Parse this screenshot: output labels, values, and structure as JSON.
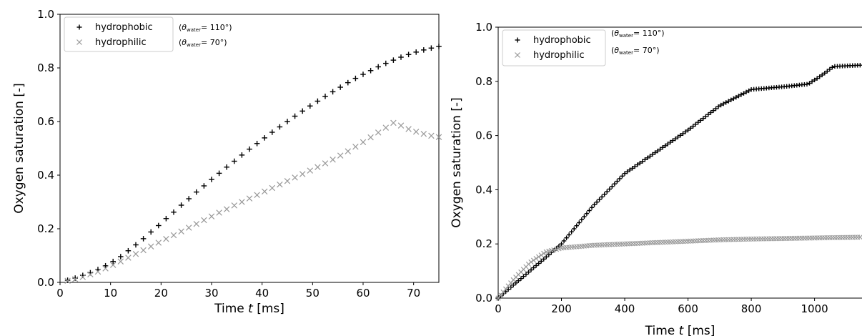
{
  "chart_data": [
    {
      "type": "scatter",
      "xlabel_prefix": "Time ",
      "xlabel_var": "t",
      "xlabel_suffix": " [ms]",
      "ylabel": "Oxygen saturation [-]",
      "xlim": [
        0,
        75
      ],
      "ylim": [
        0,
        1.0
      ],
      "xticks": [
        0,
        10,
        20,
        30,
        40,
        50,
        60,
        70
      ],
      "yticks": [
        0.0,
        0.2,
        0.4,
        0.6,
        0.8,
        1.0
      ],
      "ytick_labels": [
        "0.0",
        "0.2",
        "0.4",
        "0.6",
        "0.8",
        "1.0"
      ],
      "legend_position": "top-left",
      "series": [
        {
          "name": "hydrophobic",
          "marker": "plus",
          "color": "#000000",
          "angle_label": "(θwater= 110°)",
          "angle_symbol": "θ",
          "angle_sub": "water",
          "angle_value": "= 110°)",
          "x": [
            1.5,
            3,
            4.5,
            6,
            7.5,
            9,
            10.5,
            12,
            13.5,
            15,
            16.5,
            18,
            19.5,
            21,
            22.5,
            24,
            25.5,
            27,
            28.5,
            30,
            31.5,
            33,
            34.5,
            36,
            37.5,
            39,
            40.5,
            42,
            43.5,
            45,
            46.5,
            48,
            49.5,
            51,
            52.5,
            54,
            55.5,
            57,
            58.5,
            60,
            61.5,
            63,
            64.5,
            66,
            67.5,
            69,
            70.5,
            72,
            73.5,
            75
          ],
          "y": [
            0.008,
            0.016,
            0.026,
            0.036,
            0.048,
            0.062,
            0.078,
            0.096,
            0.118,
            0.14,
            0.163,
            0.188,
            0.212,
            0.238,
            0.262,
            0.288,
            0.312,
            0.337,
            0.36,
            0.384,
            0.407,
            0.43,
            0.452,
            0.475,
            0.497,
            0.518,
            0.539,
            0.56,
            0.58,
            0.6,
            0.62,
            0.639,
            0.658,
            0.676,
            0.694,
            0.711,
            0.728,
            0.745,
            0.761,
            0.776,
            0.79,
            0.804,
            0.817,
            0.829,
            0.84,
            0.85,
            0.859,
            0.867,
            0.874,
            0.88
          ]
        },
        {
          "name": "hydrophilic",
          "marker": "x",
          "color": "#999999",
          "angle_label": "(θwater= 70°)",
          "angle_symbol": "θ",
          "angle_sub": "water",
          "angle_value": "= 70°)",
          "x": [
            1.5,
            3,
            4.5,
            6,
            7.5,
            9,
            10.5,
            12,
            13.5,
            15,
            16.5,
            18,
            19.5,
            21,
            22.5,
            24,
            25.5,
            27,
            28.5,
            30,
            31.5,
            33,
            34.5,
            36,
            37.5,
            39,
            40.5,
            42,
            43.5,
            45,
            46.5,
            48,
            49.5,
            51,
            52.5,
            54,
            55.5,
            57,
            58.5,
            60,
            61.5,
            63,
            64.5,
            66,
            67.5,
            69,
            70.5,
            72,
            73.5,
            75
          ],
          "y": [
            0.006,
            0.012,
            0.02,
            0.03,
            0.04,
            0.052,
            0.065,
            0.078,
            0.092,
            0.106,
            0.12,
            0.134,
            0.148,
            0.162,
            0.176,
            0.19,
            0.204,
            0.218,
            0.232,
            0.246,
            0.26,
            0.273,
            0.287,
            0.3,
            0.313,
            0.326,
            0.339,
            0.352,
            0.365,
            0.378,
            0.391,
            0.404,
            0.417,
            0.43,
            0.444,
            0.458,
            0.473,
            0.489,
            0.506,
            0.523,
            0.541,
            0.559,
            0.577,
            0.595,
            0.585,
            0.572,
            0.562,
            0.554,
            0.547,
            0.542
          ]
        }
      ]
    },
    {
      "type": "scatter",
      "xlabel_prefix": "Time ",
      "xlabel_var": "t",
      "xlabel_suffix": " [ms]",
      "ylabel": "Oxygen saturation [-]",
      "xlim": [
        0,
        1150
      ],
      "ylim": [
        0,
        1.0
      ],
      "xticks": [
        0,
        200,
        400,
        600,
        800,
        1000
      ],
      "yticks": [
        0.0,
        0.2,
        0.4,
        0.6,
        0.8,
        1.0
      ],
      "ytick_labels": [
        "0.0",
        "0.2",
        "0.4",
        "0.6",
        "0.8",
        "1.0"
      ],
      "legend_position": "top-left",
      "series": [
        {
          "name": "hydrophobic",
          "marker": "plus",
          "color": "#000000",
          "angle_label": "(θwater= 110°)",
          "angle_symbol": "θ",
          "angle_sub": "water",
          "angle_value": "= 110°)",
          "x": [
            0,
            100,
            200,
            300,
            400,
            500,
            600,
            700,
            800,
            900,
            980,
            1020,
            1060,
            1150
          ],
          "y": [
            0,
            0.1,
            0.2,
            0.34,
            0.46,
            0.54,
            0.62,
            0.71,
            0.77,
            0.78,
            0.79,
            0.82,
            0.855,
            0.86
          ]
        },
        {
          "name": "hydrophilic",
          "marker": "x",
          "color": "#999999",
          "angle_label": "(θwater= 70°)",
          "angle_symbol": "θ",
          "angle_sub": "water",
          "angle_value": "= 70°)",
          "x": [
            0,
            50,
            100,
            150,
            200,
            250,
            300,
            400,
            500,
            600,
            700,
            800,
            900,
            1000,
            1100,
            1150
          ],
          "y": [
            0,
            0.07,
            0.13,
            0.17,
            0.185,
            0.19,
            0.195,
            0.2,
            0.205,
            0.21,
            0.215,
            0.218,
            0.22,
            0.222,
            0.224,
            0.225
          ]
        }
      ]
    }
  ]
}
